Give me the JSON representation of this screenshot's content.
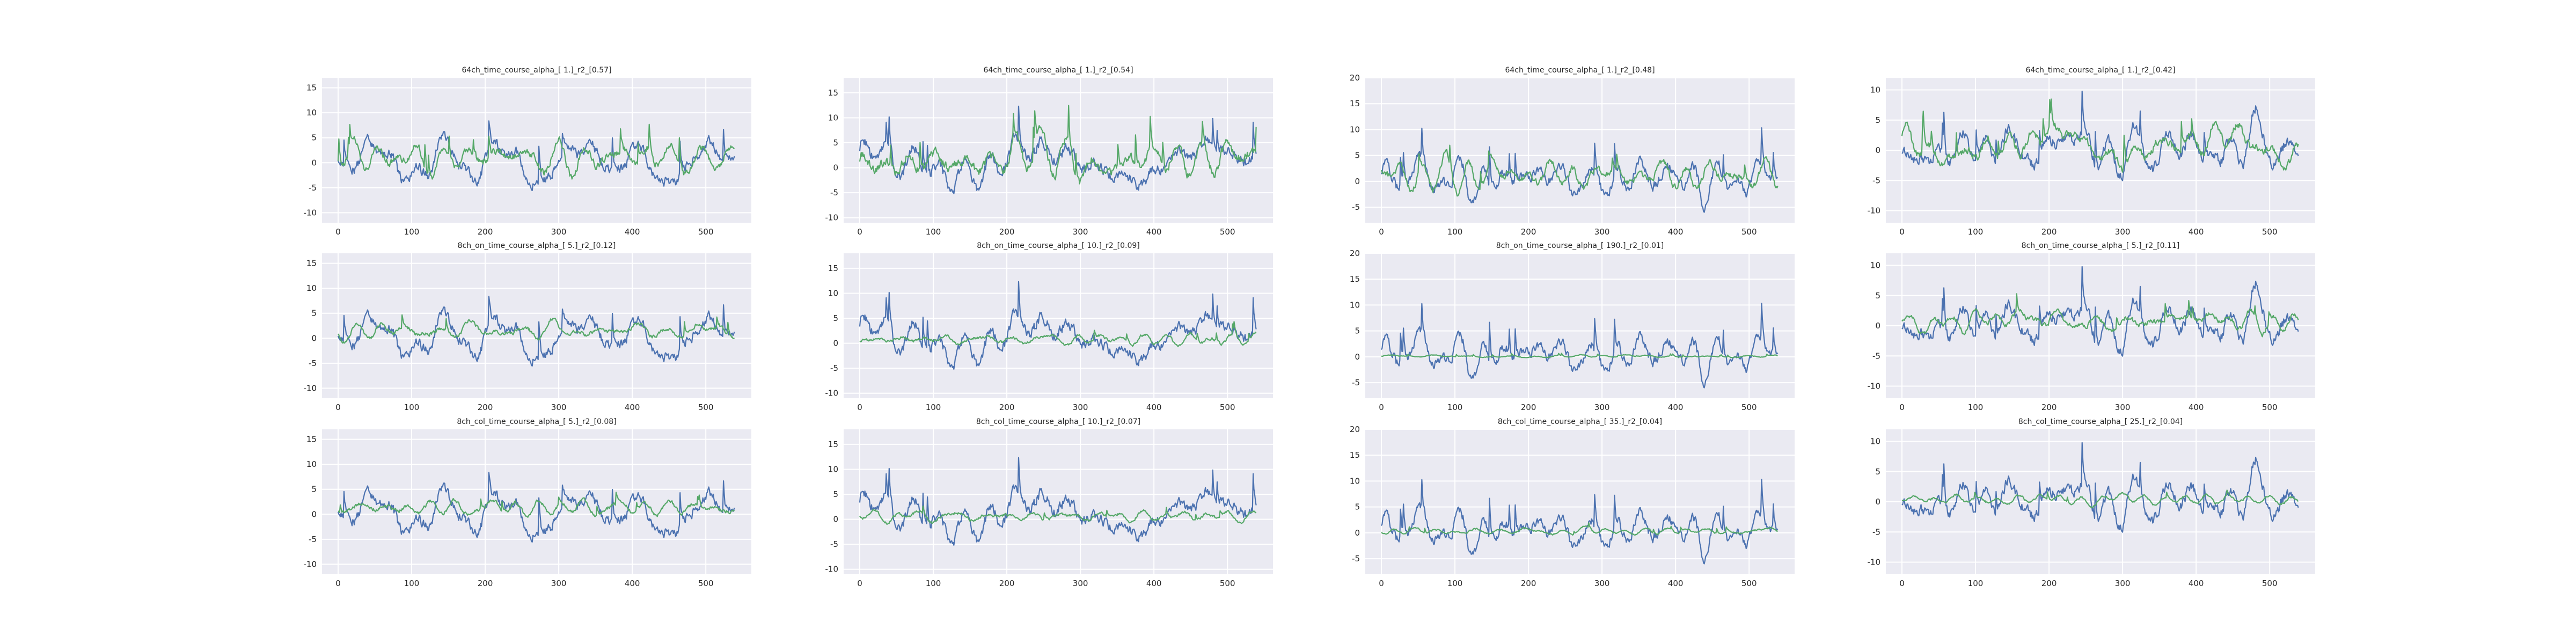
{
  "figure": {
    "background": "#ffffff",
    "panel_background": "#eaeaf2",
    "grid": true
  },
  "chart_data": [
    {
      "type": "line",
      "title": "64ch_time_course_alpha_[ 1.]_r2_[0.57]",
      "xlim": [
        0,
        540
      ],
      "ylim": [
        -12,
        17
      ],
      "x_ticks": [
        0,
        100,
        200,
        300,
        400,
        500
      ],
      "y_ticks": [
        -10,
        -5,
        0,
        5,
        10,
        15
      ],
      "series": [
        {
          "color": "#4c72b0",
          "amp": 4.2,
          "offset": 0.2,
          "seed": 11
        },
        {
          "color": "#55a868",
          "amp": 3.0,
          "offset": 1.0,
          "seed": 12
        }
      ]
    },
    {
      "type": "line",
      "title": "64ch_time_course_alpha_[ 1.]_r2_[0.54]",
      "xlim": [
        0,
        540
      ],
      "ylim": [
        -11,
        18
      ],
      "x_ticks": [
        0,
        100,
        200,
        300,
        400,
        500
      ],
      "y_ticks": [
        -10,
        -5,
        0,
        5,
        10,
        15
      ],
      "series": [
        {
          "color": "#4c72b0",
          "amp": 4.5,
          "offset": 1.0,
          "seed": 21
        },
        {
          "color": "#55a868",
          "amp": 4.0,
          "offset": 1.5,
          "seed": 22
        }
      ]
    },
    {
      "type": "line",
      "title": "64ch_time_course_alpha_[ 1.]_r2_[0.48]",
      "xlim": [
        0,
        540
      ],
      "ylim": [
        -8,
        20
      ],
      "x_ticks": [
        0,
        100,
        200,
        300,
        400,
        500
      ],
      "y_ticks": [
        -5,
        0,
        5,
        10,
        15,
        20
      ],
      "series": [
        {
          "color": "#4c72b0",
          "amp": 4.0,
          "offset": 0.5,
          "seed": 31
        },
        {
          "color": "#55a868",
          "amp": 2.6,
          "offset": 1.2,
          "seed": 32
        }
      ]
    },
    {
      "type": "line",
      "title": "64ch_time_course_alpha_[ 1.]_r2_[0.42]",
      "xlim": [
        0,
        540
      ],
      "ylim": [
        -12,
        12
      ],
      "x_ticks": [
        0,
        100,
        200,
        300,
        400,
        500
      ],
      "y_ticks": [
        -10,
        -5,
        0,
        5,
        10
      ],
      "series": [
        {
          "color": "#4c72b0",
          "amp": 3.8,
          "offset": 0.3,
          "seed": 41
        },
        {
          "color": "#55a868",
          "amp": 2.8,
          "offset": 0.8,
          "seed": 42
        }
      ]
    },
    {
      "type": "line",
      "title": "8ch_on_time_course_alpha_[ 5.]_r2_[0.12]",
      "xlim": [
        0,
        540
      ],
      "ylim": [
        -12,
        17
      ],
      "x_ticks": [
        0,
        100,
        200,
        300,
        400,
        500
      ],
      "y_ticks": [
        -10,
        -5,
        0,
        5,
        10,
        15
      ],
      "series": [
        {
          "color": "#4c72b0",
          "amp": 4.2,
          "offset": 0.2,
          "seed": 11
        },
        {
          "color": "#55a868",
          "amp": 1.6,
          "offset": 1.5,
          "seed": 52
        }
      ]
    },
    {
      "type": "line",
      "title": "8ch_on_time_course_alpha_[ 10.]_r2_[0.09]",
      "xlim": [
        0,
        540
      ],
      "ylim": [
        -11,
        18
      ],
      "x_ticks": [
        0,
        100,
        200,
        300,
        400,
        500
      ],
      "y_ticks": [
        -10,
        -5,
        0,
        5,
        10,
        15
      ],
      "series": [
        {
          "color": "#4c72b0",
          "amp": 4.5,
          "offset": 1.0,
          "seed": 21
        },
        {
          "color": "#55a868",
          "amp": 1.2,
          "offset": 0.8,
          "seed": 62
        }
      ]
    },
    {
      "type": "line",
      "title": "8ch_on_time_course_alpha_[ 190.]_r2_[0.01]",
      "xlim": [
        0,
        540
      ],
      "ylim": [
        -8,
        20
      ],
      "x_ticks": [
        0,
        100,
        200,
        300,
        400,
        500
      ],
      "y_ticks": [
        -5,
        0,
        5,
        10,
        15,
        20
      ],
      "series": [
        {
          "color": "#4c72b0",
          "amp": 4.0,
          "offset": 0.5,
          "seed": 31
        },
        {
          "color": "#55a868",
          "amp": 0.25,
          "offset": 0.1,
          "seed": 72
        }
      ]
    },
    {
      "type": "line",
      "title": "8ch_on_time_course_alpha_[ 5.]_r2_[0.11]",
      "xlim": [
        0,
        540
      ],
      "ylim": [
        -12,
        12
      ],
      "x_ticks": [
        0,
        100,
        200,
        300,
        400,
        500
      ],
      "y_ticks": [
        -10,
        -5,
        0,
        5,
        10
      ],
      "series": [
        {
          "color": "#4c72b0",
          "amp": 3.8,
          "offset": 0.3,
          "seed": 41
        },
        {
          "color": "#55a868",
          "amp": 1.6,
          "offset": 0.8,
          "seed": 82
        }
      ]
    },
    {
      "type": "line",
      "title": "8ch_col_time_course_alpha_[ 5.]_r2_[0.08]",
      "xlim": [
        0,
        540
      ],
      "ylim": [
        -12,
        17
      ],
      "x_ticks": [
        0,
        100,
        200,
        300,
        400,
        500
      ],
      "y_ticks": [
        -10,
        -5,
        0,
        5,
        10,
        15
      ],
      "series": [
        {
          "color": "#4c72b0",
          "amp": 4.2,
          "offset": 0.2,
          "seed": 11
        },
        {
          "color": "#55a868",
          "amp": 1.5,
          "offset": 1.3,
          "seed": 92
        }
      ]
    },
    {
      "type": "line",
      "title": "8ch_col_time_course_alpha_[ 10.]_r2_[0.07]",
      "xlim": [
        0,
        540
      ],
      "ylim": [
        -11,
        18
      ],
      "x_ticks": [
        0,
        100,
        200,
        300,
        400,
        500
      ],
      "y_ticks": [
        -10,
        -5,
        0,
        5,
        10,
        15
      ],
      "series": [
        {
          "color": "#4c72b0",
          "amp": 4.5,
          "offset": 1.0,
          "seed": 21
        },
        {
          "color": "#55a868",
          "amp": 1.1,
          "offset": 0.6,
          "seed": 102
        }
      ]
    },
    {
      "type": "line",
      "title": "8ch_col_time_course_alpha_[ 35.]_r2_[0.04]",
      "xlim": [
        0,
        540
      ],
      "ylim": [
        -8,
        20
      ],
      "x_ticks": [
        0,
        100,
        200,
        300,
        400,
        500
      ],
      "y_ticks": [
        -5,
        0,
        5,
        10,
        15,
        20
      ],
      "series": [
        {
          "color": "#4c72b0",
          "amp": 4.0,
          "offset": 0.5,
          "seed": 31
        },
        {
          "color": "#55a868",
          "amp": 0.6,
          "offset": 0.3,
          "seed": 112
        }
      ]
    },
    {
      "type": "line",
      "title": "8ch_col_time_course_alpha_[ 25.]_r2_[0.04]",
      "xlim": [
        0,
        540
      ],
      "ylim": [
        -12,
        12
      ],
      "x_ticks": [
        0,
        100,
        200,
        300,
        400,
        500
      ],
      "y_ticks": [
        -10,
        -5,
        0,
        5,
        10
      ],
      "series": [
        {
          "color": "#4c72b0",
          "amp": 3.8,
          "offset": 0.3,
          "seed": 41
        },
        {
          "color": "#55a868",
          "amp": 0.7,
          "offset": 0.4,
          "seed": 122
        }
      ]
    }
  ]
}
